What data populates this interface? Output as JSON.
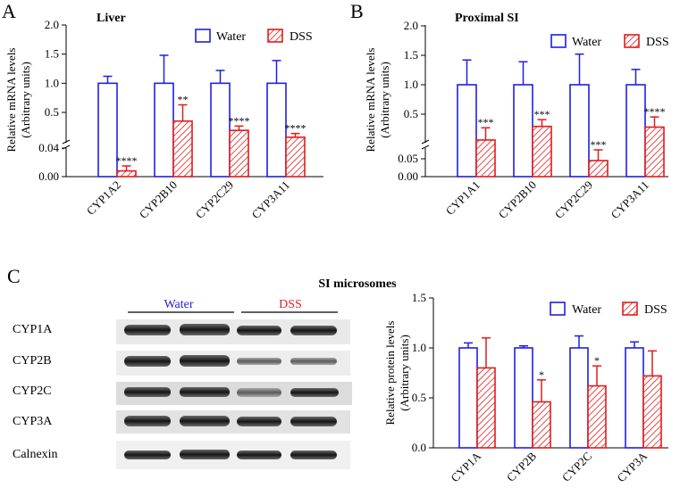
{
  "colors": {
    "water": "#1e1ee6",
    "dss": "#e01c1c"
  },
  "legend": {
    "water": "Water",
    "dss": "DSS"
  },
  "panels": {
    "a": "A",
    "b": "B",
    "c": "C"
  },
  "panel_c_title": "SI microsomes",
  "blot": {
    "group_water": "Water",
    "group_dss": "DSS",
    "rows": [
      "CYP1A",
      "CYP2B",
      "CYP2C",
      "CYP3A",
      "Calnexin"
    ]
  },
  "chart_data": [
    {
      "type": "bar",
      "title": "Liver",
      "ylabel": "Relative mRNA levels",
      "ylabel2": "(Arbitrary units)",
      "categories": [
        "CYP1A2",
        "CYP2B10",
        "CYP2C29",
        "CYP3A11"
      ],
      "series": [
        {
          "name": "Water",
          "values": [
            1.0,
            1.0,
            1.0,
            1.0
          ],
          "errors": [
            0.12,
            0.48,
            0.22,
            0.39
          ]
        },
        {
          "name": "DSS",
          "values": [
            0.008,
            0.36,
            0.21,
            0.1
          ],
          "errors": [
            0.007,
            0.27,
            0.07,
            0.06
          ]
        }
      ],
      "significance": [
        "****",
        "**",
        "****",
        "****"
      ],
      "axis_break": {
        "lower": [
          0.0,
          0.04
        ],
        "upper": [
          0.04,
          2.0
        ]
      },
      "yticks": [
        "0.00",
        "0.04",
        "0.5",
        "1.0",
        "1.5",
        "2.0"
      ]
    },
    {
      "type": "bar",
      "title": "Proximal SI",
      "ylabel": "Relative mRNA levels",
      "ylabel2": "(Arbitrary units)",
      "categories": [
        "CYP1A1",
        "CYP2B10",
        "CYP2C29",
        "CYP3A11"
      ],
      "series": [
        {
          "name": "Water",
          "values": [
            1.0,
            1.0,
            1.0,
            1.0
          ],
          "errors": [
            0.42,
            0.39,
            0.52,
            0.26
          ]
        },
        {
          "name": "DSS",
          "values": [
            0.12,
            0.32,
            0.045,
            0.31
          ],
          "errors": [
            0.18,
            0.1,
            0.03,
            0.15
          ]
        }
      ],
      "significance": [
        "***",
        "***",
        "***",
        "****"
      ],
      "axis_break": {
        "lower": [
          0.0,
          0.08
        ],
        "upper": [
          0.08,
          2.0
        ]
      },
      "yticks": [
        "0.00",
        "0.05",
        "0.5",
        "1.0",
        "1.5",
        "2.0"
      ]
    },
    {
      "type": "bar",
      "title": "",
      "ylabel": "Relative protein levels",
      "ylabel2": "(Arbitrary units)",
      "categories": [
        "CYP1A",
        "CYP2B",
        "CYP2C",
        "CYP3A"
      ],
      "series": [
        {
          "name": "Water",
          "values": [
            1.0,
            1.0,
            1.0,
            1.0
          ],
          "errors": [
            0.05,
            0.02,
            0.12,
            0.06
          ]
        },
        {
          "name": "DSS",
          "values": [
            0.8,
            0.46,
            0.62,
            0.72
          ],
          "errors": [
            0.3,
            0.22,
            0.2,
            0.25
          ]
        }
      ],
      "significance": [
        "",
        "*",
        "*",
        ""
      ],
      "ylim": [
        0,
        1.5
      ],
      "yticks": [
        "0.0",
        "0.5",
        "1.0",
        "1.5"
      ]
    }
  ]
}
